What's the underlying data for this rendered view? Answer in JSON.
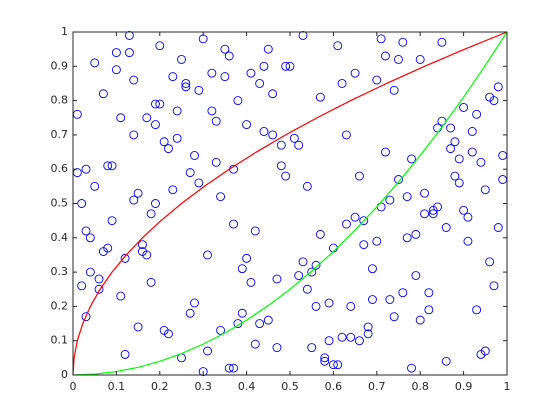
{
  "chart_data": {
    "type": "scatter",
    "xlim": [
      0,
      1
    ],
    "ylim": [
      0,
      1
    ],
    "xticks": [
      0,
      0.1,
      0.2,
      0.3,
      0.4,
      0.5,
      0.6,
      0.7,
      0.8,
      0.9,
      1
    ],
    "yticks": [
      0,
      0.1,
      0.2,
      0.3,
      0.4,
      0.5,
      0.6,
      0.7,
      0.8,
      0.9,
      1
    ],
    "grid": false,
    "series": [
      {
        "type": "scatter",
        "color": "#0000ff",
        "x": [
          0.05,
          0.12,
          0.87,
          0.43,
          0.66,
          0.29,
          0.94,
          0.18,
          0.51,
          0.73,
          0.08,
          0.35,
          0.91,
          0.62,
          0.24,
          0.47,
          0.81,
          0.14,
          0.58,
          0.99,
          0.03,
          0.39,
          0.76,
          0.27,
          0.69,
          0.11,
          0.55,
          0.84,
          0.32,
          0.97,
          0.21,
          0.48,
          0.63,
          0.07,
          0.89,
          0.36,
          0.72,
          0.16,
          0.44,
          0.93,
          0.26,
          0.59,
          0.02,
          0.78,
          0.41,
          0.13,
          0.67,
          0.85,
          0.31,
          0.54,
          0.96,
          0.19,
          0.45,
          0.71,
          0.09,
          0.37,
          0.82,
          0.23,
          0.61,
          0.88,
          0.34,
          0.04,
          0.57,
          0.79,
          0.15,
          0.49,
          0.92,
          0.28,
          0.65,
          0.01,
          0.42,
          0.75,
          0.17,
          0.53,
          0.86,
          0.22,
          0.68,
          0.38,
          0.95,
          0.06,
          0.46,
          0.83,
          0.25,
          0.6,
          0.1,
          0.74,
          0.33,
          0.98,
          0.52,
          0.2,
          0.77,
          0.4,
          0.64,
          0.14,
          0.9,
          0.3,
          0.56,
          0.8,
          0.03,
          0.7,
          0.11,
          0.63,
          0.37,
          0.85,
          0.22,
          0.49,
          0.96,
          0.07,
          0.58,
          0.33,
          0.71,
          0.18,
          0.44,
          0.89,
          0.27,
          0.62,
          0.04,
          0.78,
          0.52,
          0.15,
          0.93,
          0.39,
          0.68,
          0.25,
          0.81,
          0.09,
          0.47,
          0.74,
          0.31,
          0.99,
          0.13,
          0.56,
          0.87,
          0.42,
          0.2,
          0.66,
          0.05,
          0.79,
          0.35,
          0.91,
          0.28,
          0.6,
          0.16,
          0.84,
          0.45,
          0.02,
          0.73,
          0.38,
          0.97,
          0.24,
          0.53,
          0.88,
          0.12,
          0.67,
          0.41,
          0.82,
          0.19,
          0.57,
          0.94,
          0.3,
          0.08,
          0.46,
          0.76,
          0.23,
          0.64,
          0.36,
          0.9,
          0.14,
          0.55,
          0.8,
          0.43,
          0.01,
          0.69,
          0.32,
          0.86,
          0.21,
          0.61,
          0.98,
          0.06,
          0.5,
          0.77,
          0.34,
          0.17,
          0.72,
          0.4,
          0.95,
          0.26,
          0.59,
          0.1,
          0.83,
          0.48,
          0.7,
          0.03,
          0.65,
          0.29,
          0.92,
          0.54,
          0.19,
          0.75,
          0.37
        ],
        "values": [
          0.91,
          0.34,
          0.72,
          0.15,
          0.58,
          0.83,
          0.06,
          0.47,
          0.69,
          0.22,
          0.61,
          0.95,
          0.39,
          0.11,
          0.77,
          0.28,
          0.53,
          0.86,
          0.04,
          0.64,
          0.42,
          0.18,
          0.97,
          0.59,
          0.31,
          0.75,
          0.08,
          0.49,
          0.88,
          0.26,
          0.13,
          0.67,
          0.44,
          0.82,
          0.56,
          0.02,
          0.93,
          0.36,
          0.71,
          0.19,
          0.85,
          0.1,
          0.5,
          0.63,
          0.27,
          0.94,
          0.38,
          0.74,
          0.07,
          0.55,
          0.33,
          0.79,
          0.16,
          0.98,
          0.45,
          0.6,
          0.24,
          0.87,
          0.03,
          0.68,
          0.52,
          0.3,
          0.81,
          0.41,
          0.14,
          0.9,
          0.65,
          0.21,
          0.46,
          0.76,
          0.09,
          0.57,
          0.35,
          0.99,
          0.43,
          0.66,
          0.12,
          0.8,
          0.54,
          0.25,
          0.7,
          0.48,
          0.05,
          0.37,
          0.89,
          0.17,
          0.62,
          0.84,
          0.29,
          0.96,
          0.4,
          0.73,
          0.2,
          0.51,
          0.78,
          0.01,
          0.32,
          0.92,
          0.6,
          0.86,
          0.23,
          0.7,
          0.44,
          0.97,
          0.12,
          0.58,
          0.81,
          0.36,
          0.05,
          0.74,
          0.49,
          0.27,
          0.9,
          0.63,
          0.18,
          0.85,
          0.4,
          0.02,
          0.67,
          0.53,
          0.76,
          0.31,
          0.14,
          0.92,
          0.47,
          0.61,
          0.08,
          0.83,
          0.35,
          0.57,
          0.99,
          0.2,
          0.66,
          0.42,
          0.79,
          0.1,
          0.55,
          0.29,
          0.87,
          0.46,
          0.64,
          0.03,
          0.38,
          0.72,
          0.95,
          0.26,
          0.51,
          0.15,
          0.8,
          0.69,
          0.33,
          0.58,
          0.06,
          0.45,
          0.88,
          0.19,
          0.73,
          0.41,
          0.62,
          0.98,
          0.37,
          0.82,
          0.24,
          0.54,
          0.11,
          0.93,
          0.48,
          0.7,
          0.3,
          0.16,
          0.85,
          0.59,
          0.22,
          0.77,
          0.04,
          0.68,
          0.96,
          0.43,
          0.28,
          0.9,
          0.52,
          0.13,
          0.75,
          0.65,
          0.34,
          0.07,
          0.84,
          0.21,
          0.94,
          0.47,
          0.61,
          0.39,
          0.17,
          0.88,
          0.56,
          0.71,
          0.25,
          0.5,
          0.92,
          0.02
        ]
      },
      {
        "type": "line",
        "color": "#ff0000",
        "x": [
          0,
          0.0025,
          0.01,
          0.0225,
          0.04,
          0.0625,
          0.09,
          0.1225,
          0.16,
          0.2025,
          0.25,
          0.3025,
          0.36,
          0.4225,
          0.49,
          0.5625,
          0.64,
          0.7225,
          0.81,
          0.9025,
          1
        ],
        "values": [
          0,
          0.05,
          0.1,
          0.15,
          0.2,
          0.25,
          0.3,
          0.35,
          0.4,
          0.45,
          0.5,
          0.55,
          0.6,
          0.65,
          0.7,
          0.75,
          0.8,
          0.85,
          0.9,
          0.95,
          1
        ]
      },
      {
        "type": "line",
        "color": "#00ff00",
        "x": [
          0,
          0.05,
          0.1,
          0.15,
          0.2,
          0.25,
          0.3,
          0.35,
          0.4,
          0.45,
          0.5,
          0.55,
          0.6,
          0.65,
          0.7,
          0.75,
          0.8,
          0.85,
          0.9,
          0.95,
          1
        ],
        "values": [
          0,
          0.0025,
          0.01,
          0.0225,
          0.04,
          0.0625,
          0.09,
          0.1225,
          0.16,
          0.2025,
          0.25,
          0.3025,
          0.36,
          0.4225,
          0.49,
          0.5625,
          0.64,
          0.7225,
          0.81,
          0.9025,
          1
        ]
      }
    ]
  }
}
